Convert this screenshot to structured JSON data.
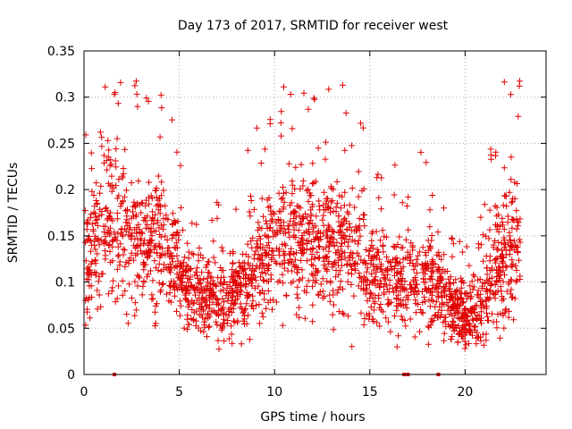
{
  "chart_data": {
    "type": "scatter",
    "title": "Day 173 of 2017, SRMTID for receiver west",
    "xlabel": "GPS time / hours",
    "ylabel": "SRMTID / TECUs",
    "xlim": [
      0,
      24.25
    ],
    "ylim": [
      0,
      0.35
    ],
    "xticks": [
      0,
      5,
      10,
      15,
      20
    ],
    "xtick_labels": [
      "0",
      "5",
      "10",
      "15",
      "20"
    ],
    "yticks": [
      0,
      0.05,
      0.1,
      0.15,
      0.2,
      0.25,
      0.3,
      0.35
    ],
    "ytick_labels": [
      "0",
      "0.05",
      "0.1",
      "0.15",
      "0.2",
      "0.25",
      "0.3",
      "0.35"
    ],
    "grid": true,
    "marker": "plus",
    "color": "#e00000",
    "envelope": {
      "description": "approximate central value and spread of the SRMTID point cloud vs GPS time",
      "time": [
        0,
        1,
        2,
        3,
        4,
        5,
        6,
        7,
        8,
        9,
        10,
        11,
        12,
        13,
        14,
        15,
        16,
        17,
        18,
        19,
        20,
        21,
        22,
        23
      ],
      "center": [
        0.11,
        0.17,
        0.15,
        0.14,
        0.15,
        0.11,
        0.09,
        0.08,
        0.08,
        0.12,
        0.14,
        0.15,
        0.14,
        0.15,
        0.14,
        0.11,
        0.1,
        0.1,
        0.11,
        0.08,
        0.06,
        0.08,
        0.13,
        0.15
      ],
      "spread": [
        0.05,
        0.07,
        0.07,
        0.06,
        0.07,
        0.04,
        0.035,
        0.035,
        0.04,
        0.05,
        0.06,
        0.06,
        0.06,
        0.07,
        0.06,
        0.045,
        0.04,
        0.05,
        0.05,
        0.03,
        0.025,
        0.04,
        0.07,
        0.07
      ]
    },
    "zero_points_x": [
      1.6,
      16.8,
      17.0,
      18.6
    ]
  }
}
